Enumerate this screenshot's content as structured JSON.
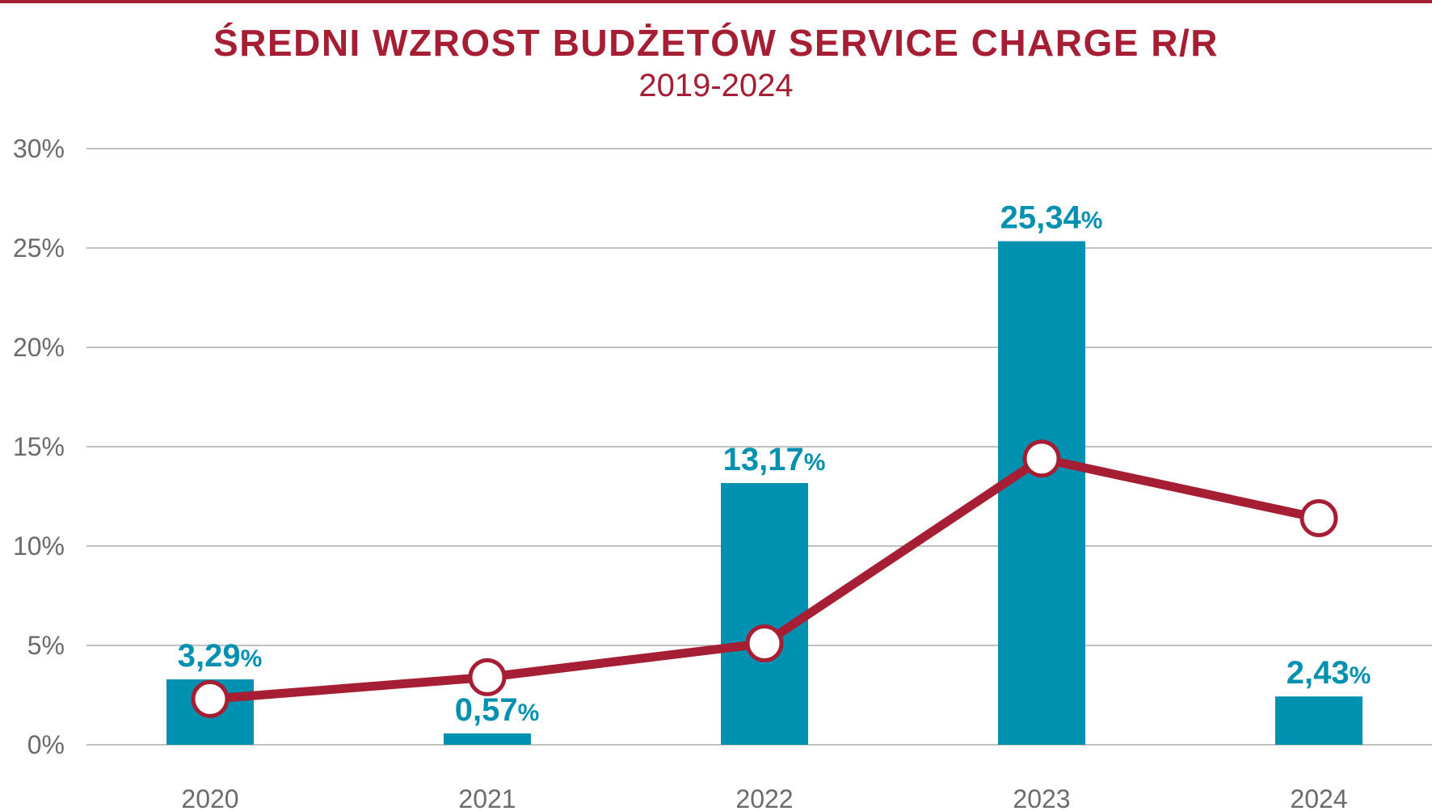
{
  "chart_data": {
    "type": "bar",
    "title": "ŚREDNI WZROST BUDŻETÓW SERVICE CHARGE R/R",
    "subtitle": "2019-2024",
    "categories": [
      "2020",
      "2021",
      "2022",
      "2023",
      "2024"
    ],
    "series": [
      {
        "type": "bar",
        "values": [
          3.29,
          0.57,
          13.17,
          25.34,
          2.43
        ],
        "labels": [
          "3,29",
          "0,57",
          "13,17",
          "25,34",
          "2,43"
        ],
        "label_suffix": "%",
        "color": "#0090b0"
      },
      {
        "type": "line",
        "values": [
          2.3,
          3.4,
          5.1,
          14.4,
          11.4
        ],
        "color": "#a61e34",
        "marker": "hollow-circle"
      }
    ],
    "y_ticks": [
      0,
      5,
      10,
      15,
      20,
      25,
      30
    ],
    "y_tick_labels": [
      "0%",
      "5%",
      "10%",
      "15%",
      "20%",
      "25%",
      "30%"
    ],
    "ylim": [
      0,
      30
    ],
    "grid": true,
    "legend": "none"
  }
}
